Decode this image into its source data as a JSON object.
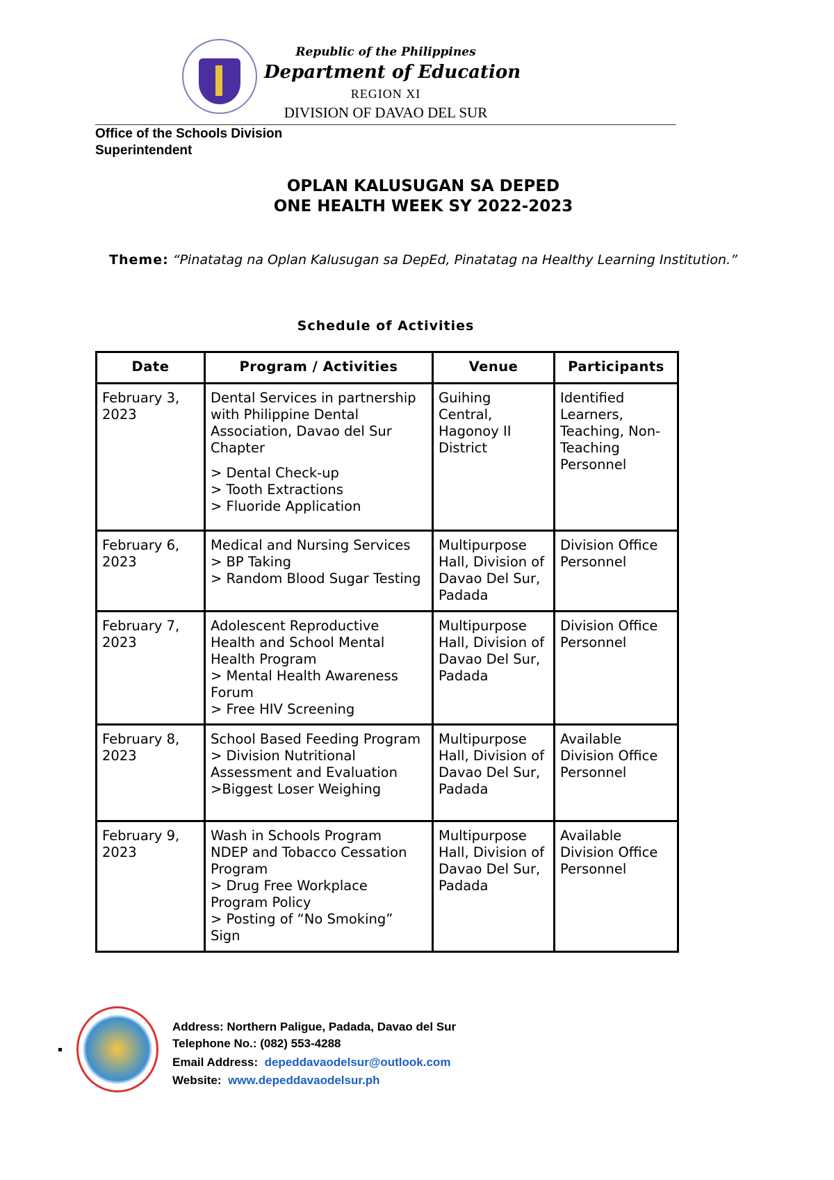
{
  "header": {
    "republic": "Republic of the Philippines",
    "department": "Department of Education",
    "region": "REGION XI",
    "division": "DIVISION OF DAVAO DEL SUR",
    "office": "Office of the Schools Division Superintendent"
  },
  "title": {
    "line1": "OPLAN KALUSUGAN SA DEPED",
    "line2": "ONE HEALTH WEEK SY 2022-2023"
  },
  "theme": {
    "label": "Theme:",
    "text": "“Pinatatag na Oplan Kalusugan sa DepEd, Pinatatag na Healthy Learning Institution.”"
  },
  "schedule_title": "Schedule of Activities",
  "table": {
    "headers": [
      "Date",
      "Program / Activities",
      "Venue",
      "Participants"
    ],
    "rows": [
      {
        "date": "February 3, 2023",
        "program": [
          "Dental Services in partnership with Philippine Dental Association, Davao del Sur Chapter",
          "",
          "> Dental Check-up",
          "> Tooth Extractions",
          "> Fluoride Application"
        ],
        "venue": "Guihing Central, Hagonoy II District",
        "participants": "Identified Learners, Teaching, Non-Teaching Personnel"
      },
      {
        "date": "February 6, 2023",
        "program": [
          "Medical and Nursing Services",
          "> BP Taking",
          "> Random Blood Sugar Testing"
        ],
        "venue": "Multipurpose Hall, Division of Davao Del Sur, Padada",
        "participants": "Division Office Personnel"
      },
      {
        "date": "February 7, 2023",
        "program": [
          "Adolescent Reproductive Health and School Mental Health Program",
          "> Mental Health Awareness Forum",
          "> Free HIV Screening"
        ],
        "venue": "Multipurpose Hall, Division of Davao Del Sur, Padada",
        "participants": " Division Office Personnel"
      },
      {
        "date": "February 8, 2023",
        "program": [
          "School Based Feeding Program",
          "> Division Nutritional Assessment and Evaluation",
          ">Biggest Loser Weighing"
        ],
        "venue": "Multipurpose Hall, Division of Davao Del Sur, Padada",
        "participants": "Available Division Office Personnel"
      },
      {
        "date": "February 9, 2023",
        "program": [
          "Wash in Schools Program",
          "NDEP and Tobacco Cessation Program",
          "> Drug Free Workplace Program Policy",
          "> Posting of “No Smoking” Sign"
        ],
        "venue": "Multipurpose Hall, Division of Davao Del Sur, Padada",
        "participants": "Available Division Office Personnel"
      }
    ]
  },
  "footer": {
    "address": "Address: Northern Paligue, Padada, Davao del Sur",
    "telephone": "Telephone No.: (082) 553-4288",
    "email_label": "Email Address:",
    "email": "depeddavaodelsur@outlook.com",
    "website_label": "Website:",
    "website": "www.depeddavaodelsur.ph"
  },
  "colors": {
    "link": "#1f5fbf",
    "seal_purple": "#4b2fa0"
  }
}
